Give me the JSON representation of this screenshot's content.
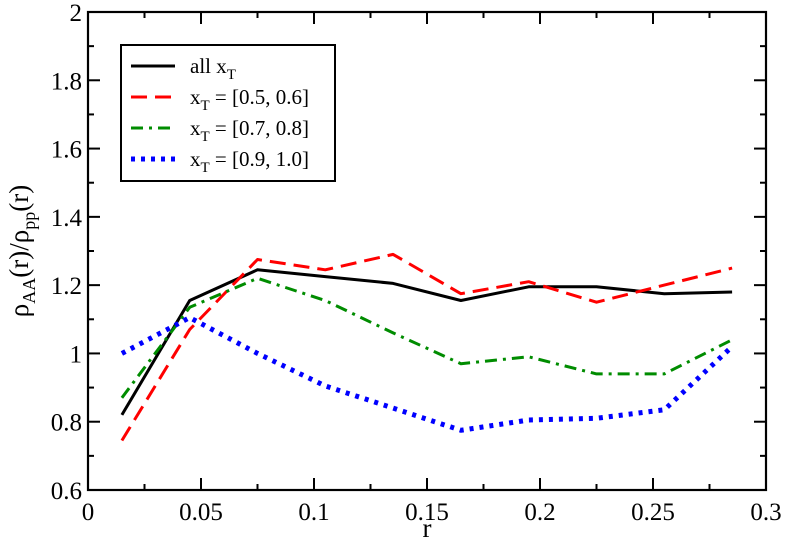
{
  "chart_data": {
    "type": "line",
    "xlabel": "r",
    "ylabel": {
      "base": "ρ",
      "sub1": "AA",
      "mid": "(r)/ρ",
      "sub2": "pp",
      "tail": "(r)"
    },
    "xlim": [
      0,
      0.3
    ],
    "ylim": [
      0.6,
      2
    ],
    "xticks": [
      0,
      0.05,
      0.1,
      0.15,
      0.2,
      0.25,
      0.3
    ],
    "xtick_labels": [
      "0",
      "0.05",
      "0.1",
      "0.15",
      "0.2",
      "0.25",
      "0.3"
    ],
    "yticks": [
      0.6,
      0.8,
      1,
      1.2,
      1.4,
      1.6,
      1.8,
      2
    ],
    "ytick_labels": [
      "0.6",
      "0.8",
      "1",
      "1.2",
      "1.4",
      "1.6",
      "1.8",
      "2"
    ],
    "grid": false,
    "legend_position": "top-left",
    "x": [
      0.015,
      0.045,
      0.075,
      0.105,
      0.135,
      0.165,
      0.195,
      0.225,
      0.255,
      0.285
    ],
    "series": [
      {
        "key": "all",
        "name": {
          "main": "all x",
          "sub": "T",
          "rest": ""
        },
        "color": "#000000",
        "style": "solid",
        "values": [
          0.82,
          1.155,
          1.245,
          1.225,
          1.205,
          1.155,
          1.195,
          1.195,
          1.175,
          1.18
        ]
      },
      {
        "key": "x05",
        "name": {
          "main": "x",
          "sub": "T",
          "rest": " = [0.5, 0.6]"
        },
        "color": "#ff0000",
        "style": "dashed",
        "values": [
          0.745,
          1.07,
          1.275,
          1.245,
          1.29,
          1.175,
          1.21,
          1.15,
          1.2,
          1.25
        ]
      },
      {
        "key": "x07",
        "name": {
          "main": "x",
          "sub": "T",
          "rest": " = [0.7, 0.8]"
        },
        "color": "#008c00",
        "style": "dashdot",
        "values": [
          0.87,
          1.135,
          1.22,
          1.155,
          1.06,
          0.97,
          0.99,
          0.94,
          0.94,
          1.04
        ]
      },
      {
        "key": "x09",
        "name": {
          "main": "x",
          "sub": "T",
          "rest": " = [0.9, 1.0]"
        },
        "color": "#0000ff",
        "style": "dotted",
        "values": [
          1.0,
          1.105,
          1.0,
          0.905,
          0.84,
          0.775,
          0.805,
          0.81,
          0.835,
          1.02
        ]
      }
    ]
  }
}
